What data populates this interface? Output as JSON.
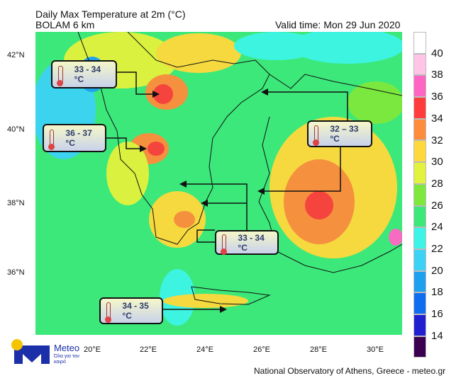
{
  "header": {
    "title": "Daily Max Temperature at 2m (°C)",
    "model": "BOLAM 6 km",
    "valid_time": "Valid time: Mon 29 Jun 2020"
  },
  "axes": {
    "lat_labels": [
      "42°N",
      "40°N",
      "38°N",
      "36°N"
    ],
    "lon_labels": [
      "20°E",
      "22°E",
      "24°E",
      "26°E",
      "28°E",
      "30°E"
    ]
  },
  "legend": {
    "labels": [
      "40",
      "38",
      "36",
      "34",
      "32",
      "30",
      "28",
      "26",
      "24",
      "22",
      "20",
      "18",
      "16",
      "14"
    ],
    "colors": [
      "#ffffff",
      "#ffc4e6",
      "#ff66c4",
      "#ff3b3b",
      "#ff8c3c",
      "#ffd93c",
      "#e3f23c",
      "#7ee83c",
      "#3ce87a",
      "#3cf5e6",
      "#3cd2f5",
      "#1ea0f0",
      "#0f6ef0",
      "#2020d0",
      "#3c0050"
    ]
  },
  "callouts": [
    {
      "label": "33 - 34 °C",
      "icon": "thermometer-icon"
    },
    {
      "label": "36 - 37 °C",
      "icon": "thermometer-icon"
    },
    {
      "label": "32 – 33 °C",
      "icon": "thermometer-icon"
    },
    {
      "label": "33 - 34 °C",
      "icon": "thermometer-icon"
    },
    {
      "label": "34 - 35 °C",
      "icon": "thermometer-icon"
    }
  ],
  "logo": {
    "name": "Meteo",
    "tagline": "Όλα για τον καιρό"
  },
  "footer": {
    "credit": "National Observatory of Athens, Greece - meteo.gr"
  }
}
